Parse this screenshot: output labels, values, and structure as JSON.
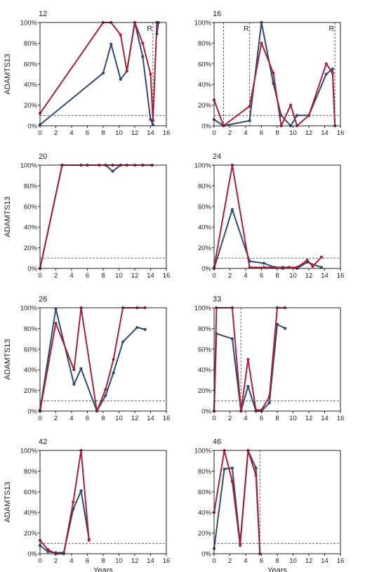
{
  "colors": {
    "series_blue": "#2e4a72",
    "series_red": "#a3213a",
    "threshold_line": "#555555",
    "refractory_line": "#555555",
    "axis": "#222222"
  },
  "figure": {
    "ylabel": "ADAMTS13",
    "xlabel": "Years",
    "refractory_label": "R",
    "threshold_value": 10
  },
  "chart_data": [
    {
      "type": "line",
      "title": "12",
      "x_range": [
        0,
        16
      ],
      "y_range": [
        0,
        100
      ],
      "threshold": 10,
      "x_ticks": [
        0,
        2,
        4,
        6,
        8,
        10,
        12,
        14,
        16
      ],
      "y_ticks": [
        0,
        20,
        40,
        60,
        80,
        100
      ],
      "y_tick_labels": [
        "0%",
        "20%",
        "40%",
        "60%",
        "80%",
        "100%"
      ],
      "x_tick_visible": true,
      "ylabel_visible": true,
      "xlabel_visible": false,
      "vlines": [
        {
          "x": 14.3,
          "label": "R"
        }
      ],
      "series": [
        {
          "color": "blue",
          "points": [
            [
              0,
              1
            ],
            [
              8,
              51
            ],
            [
              9,
              79
            ],
            [
              10.2,
              45
            ],
            [
              11,
              53
            ],
            [
              12,
              100
            ],
            [
              13,
              67
            ],
            [
              14,
              6
            ],
            [
              14.3,
              1
            ]
          ]
        },
        {
          "color": "red",
          "points": [
            [
              0,
              12
            ],
            [
              8,
              100
            ],
            [
              9,
              100
            ],
            [
              10.2,
              88
            ],
            [
              11,
              53
            ],
            [
              12,
              100
            ],
            [
              13,
              80
            ],
            [
              14,
              50
            ],
            [
              14.3,
              5
            ],
            [
              14.8,
              100
            ]
          ]
        },
        {
          "color": "blue",
          "points": [
            [
              14.8,
              89
            ],
            [
              15,
              100
            ]
          ]
        }
      ]
    },
    {
      "type": "line",
      "title": "16",
      "x_range": [
        0,
        16
      ],
      "y_range": [
        0,
        100
      ],
      "threshold": 10,
      "x_ticks": [
        0,
        2,
        4,
        6,
        8,
        10,
        12,
        14,
        16
      ],
      "y_ticks": [
        0,
        20,
        40,
        60,
        80,
        100
      ],
      "y_tick_labels": [
        "0%",
        "20%",
        "40%",
        "60%",
        "80%",
        "100%"
      ],
      "x_tick_visible": true,
      "ylabel_visible": false,
      "xlabel_visible": false,
      "vlines": [
        {
          "x": 1.2,
          "label": ""
        },
        {
          "x": 4.5,
          "label": "R"
        },
        {
          "x": 15.3,
          "label": "R"
        }
      ],
      "series": [
        {
          "color": "blue",
          "points": [
            [
              0,
              6
            ],
            [
              1.2,
              0
            ],
            [
              4.5,
              5
            ],
            [
              6,
              100
            ],
            [
              7.5,
              41
            ],
            [
              8.5,
              10
            ],
            [
              9.7,
              0
            ],
            [
              10.5,
              10
            ],
            [
              12,
              10
            ],
            [
              14.2,
              50
            ],
            [
              15,
              55
            ],
            [
              15.3,
              0
            ]
          ]
        },
        {
          "color": "red",
          "points": [
            [
              0,
              25
            ],
            [
              1.2,
              0
            ],
            [
              4.5,
              19
            ],
            [
              6,
              80
            ],
            [
              7.5,
              51
            ],
            [
              8.5,
              0
            ],
            [
              9.7,
              20
            ],
            [
              10.5,
              0
            ],
            [
              12,
              10
            ],
            [
              14.2,
              60
            ],
            [
              15,
              51
            ],
            [
              15.3,
              0
            ]
          ]
        }
      ]
    },
    {
      "type": "line",
      "title": "20",
      "x_range": [
        0,
        16
      ],
      "y_range": [
        0,
        100
      ],
      "threshold": 10,
      "x_ticks": [
        0,
        2,
        4,
        6,
        8,
        10,
        12,
        14,
        16
      ],
      "y_ticks": [
        0,
        20,
        40,
        60,
        80,
        100
      ],
      "y_tick_labels": [
        "0%",
        "20%",
        "40%",
        "60%",
        "80%",
        "100%"
      ],
      "x_tick_visible": true,
      "ylabel_visible": true,
      "xlabel_visible": false,
      "vlines": [],
      "series": [
        {
          "color": "blue",
          "points": [
            [
              0,
              0
            ],
            [
              2.8,
              100
            ],
            [
              5.2,
              100
            ],
            [
              6,
              100
            ],
            [
              7.5,
              100
            ],
            [
              8.3,
              100
            ],
            [
              9.2,
              94
            ],
            [
              10.2,
              100
            ],
            [
              11,
              100
            ],
            [
              12,
              100
            ],
            [
              13,
              100
            ],
            [
              14.2,
              100
            ]
          ]
        },
        {
          "color": "red",
          "points": [
            [
              0,
              0
            ],
            [
              2.8,
              100
            ],
            [
              5.2,
              100
            ],
            [
              6,
              100
            ],
            [
              7.5,
              100
            ],
            [
              8.3,
              100
            ],
            [
              9.2,
              100
            ],
            [
              10.2,
              100
            ],
            [
              11,
              100
            ],
            [
              12,
              100
            ],
            [
              13,
              100
            ],
            [
              14.2,
              100
            ]
          ]
        }
      ]
    },
    {
      "type": "line",
      "title": "24",
      "x_range": [
        0,
        16
      ],
      "y_range": [
        0,
        100
      ],
      "threshold": 10,
      "x_ticks": [
        0,
        2,
        4,
        6,
        8,
        10,
        12,
        14,
        16
      ],
      "y_ticks": [
        0,
        20,
        40,
        60,
        80,
        100
      ],
      "y_tick_labels": [
        "0%",
        "20%",
        "40%",
        "60%",
        "80%",
        "100%"
      ],
      "x_tick_visible": true,
      "ylabel_visible": false,
      "xlabel_visible": false,
      "vlines": [],
      "series": [
        {
          "color": "blue",
          "points": [
            [
              0,
              0
            ],
            [
              2.3,
              57
            ],
            [
              4.5,
              7
            ],
            [
              6.3,
              5
            ],
            [
              7.7,
              1
            ],
            [
              8.7,
              1
            ],
            [
              9.5,
              1
            ],
            [
              10.5,
              0
            ],
            [
              11.8,
              6
            ],
            [
              13.6,
              1
            ]
          ]
        },
        {
          "color": "red",
          "points": [
            [
              0,
              1
            ],
            [
              2.3,
              100
            ],
            [
              4.5,
              1
            ],
            [
              6.3,
              1
            ],
            [
              7.7,
              1
            ],
            [
              8.7,
              0
            ],
            [
              9.5,
              1
            ],
            [
              10.5,
              1
            ],
            [
              11.8,
              8
            ],
            [
              12.5,
              2
            ],
            [
              13.6,
              11
            ]
          ]
        }
      ]
    },
    {
      "type": "line",
      "title": "26",
      "x_range": [
        0,
        16
      ],
      "y_range": [
        0,
        100
      ],
      "threshold": 10,
      "x_ticks": [
        0,
        2,
        4,
        6,
        8,
        10,
        12,
        14,
        16
      ],
      "y_ticks": [
        0,
        20,
        40,
        60,
        80,
        100
      ],
      "y_tick_labels": [
        "0%",
        "20%",
        "40%",
        "60%",
        "80%",
        "100%"
      ],
      "x_tick_visible": true,
      "ylabel_visible": true,
      "xlabel_visible": false,
      "vlines": [],
      "series": [
        {
          "color": "blue",
          "points": [
            [
              0,
              1
            ],
            [
              2,
              99
            ],
            [
              4.3,
              26
            ],
            [
              5.2,
              41
            ],
            [
              7.2,
              0
            ],
            [
              8.3,
              15
            ],
            [
              9.3,
              37
            ],
            [
              10.5,
              67
            ],
            [
              12.3,
              81
            ],
            [
              13.3,
              79
            ]
          ]
        },
        {
          "color": "red",
          "points": [
            [
              0,
              0
            ],
            [
              2,
              85
            ],
            [
              4.3,
              40
            ],
            [
              5.2,
              100
            ],
            [
              7.2,
              0
            ],
            [
              8.3,
              21
            ],
            [
              9.3,
              50
            ],
            [
              10.5,
              100
            ],
            [
              12.3,
              100
            ],
            [
              13.3,
              100
            ]
          ]
        }
      ]
    },
    {
      "type": "line",
      "title": "33",
      "x_range": [
        0,
        16
      ],
      "y_range": [
        0,
        100
      ],
      "threshold": 10,
      "x_ticks": [
        0,
        2,
        4,
        6,
        8,
        10,
        12,
        14,
        16
      ],
      "y_ticks": [
        0,
        20,
        40,
        60,
        80,
        100
      ],
      "y_tick_labels": [
        "0%",
        "20%",
        "40%",
        "60%",
        "80%",
        "100%"
      ],
      "x_tick_visible": true,
      "ylabel_visible": false,
      "xlabel_visible": false,
      "vlines": [
        {
          "x": 3.4,
          "label": ""
        }
      ],
      "series": [
        {
          "color": "blue",
          "points": [
            [
              0,
              0
            ],
            [
              0.3,
              75
            ],
            [
              2.3,
              70
            ],
            [
              3.4,
              0
            ],
            [
              4.3,
              24
            ],
            [
              5.3,
              0
            ],
            [
              6,
              0
            ],
            [
              7,
              8
            ],
            [
              8,
              84
            ],
            [
              9,
              80
            ]
          ]
        },
        {
          "color": "red",
          "points": [
            [
              0,
              0
            ],
            [
              0.3,
              100
            ],
            [
              2.3,
              100
            ],
            [
              3.4,
              0
            ],
            [
              4.3,
              50
            ],
            [
              5.3,
              1
            ],
            [
              6,
              1
            ],
            [
              7,
              14
            ],
            [
              8,
              100
            ],
            [
              9,
              100
            ]
          ]
        }
      ]
    },
    {
      "type": "line",
      "title": "42",
      "x_range": [
        0,
        16
      ],
      "y_range": [
        0,
        100
      ],
      "threshold": 10,
      "x_ticks": [
        0,
        2,
        4,
        6,
        8,
        10,
        12,
        14,
        16
      ],
      "y_ticks": [
        0,
        20,
        40,
        60,
        80,
        100
      ],
      "y_tick_labels": [
        "0%",
        "20%",
        "40%",
        "60%",
        "80%",
        "100%"
      ],
      "x_tick_visible": true,
      "ylabel_visible": true,
      "xlabel_visible": true,
      "vlines": [],
      "series": [
        {
          "color": "blue",
          "points": [
            [
              0,
              8
            ],
            [
              1,
              2
            ],
            [
              2,
              1
            ],
            [
              3,
              1
            ],
            [
              4.2,
              43
            ],
            [
              5.2,
              61
            ],
            [
              6.2,
              14
            ]
          ]
        },
        {
          "color": "red",
          "points": [
            [
              0,
              13
            ],
            [
              1,
              4
            ],
            [
              2,
              0
            ],
            [
              3,
              0
            ],
            [
              4.2,
              50
            ],
            [
              5.2,
              100
            ],
            [
              6.2,
              13
            ]
          ]
        }
      ]
    },
    {
      "type": "line",
      "title": "46",
      "x_range": [
        0,
        16
      ],
      "y_range": [
        0,
        100
      ],
      "threshold": 10,
      "x_ticks": [
        0,
        2,
        4,
        6,
        8,
        10,
        12,
        14,
        16
      ],
      "y_ticks": [
        0,
        20,
        40,
        60,
        80,
        100
      ],
      "y_tick_labels": [
        "0%",
        "20%",
        "40%",
        "60%",
        "80%",
        "100%"
      ],
      "x_tick_visible": true,
      "ylabel_visible": false,
      "xlabel_visible": true,
      "vlines": [
        {
          "x": 5.8,
          "label": ""
        }
      ],
      "series": [
        {
          "color": "blue",
          "points": [
            [
              0,
              5
            ],
            [
              1.3,
              82
            ],
            [
              2.3,
              83
            ],
            [
              3.3,
              10
            ],
            [
              4.3,
              100
            ],
            [
              5.3,
              83
            ],
            [
              5.8,
              0
            ]
          ]
        },
        {
          "color": "red",
          "points": [
            [
              0,
              40
            ],
            [
              1.3,
              100
            ],
            [
              2.3,
              70
            ],
            [
              3.3,
              8
            ],
            [
              4.3,
              100
            ],
            [
              5.3,
              76
            ],
            [
              5.8,
              0
            ]
          ]
        }
      ]
    }
  ]
}
